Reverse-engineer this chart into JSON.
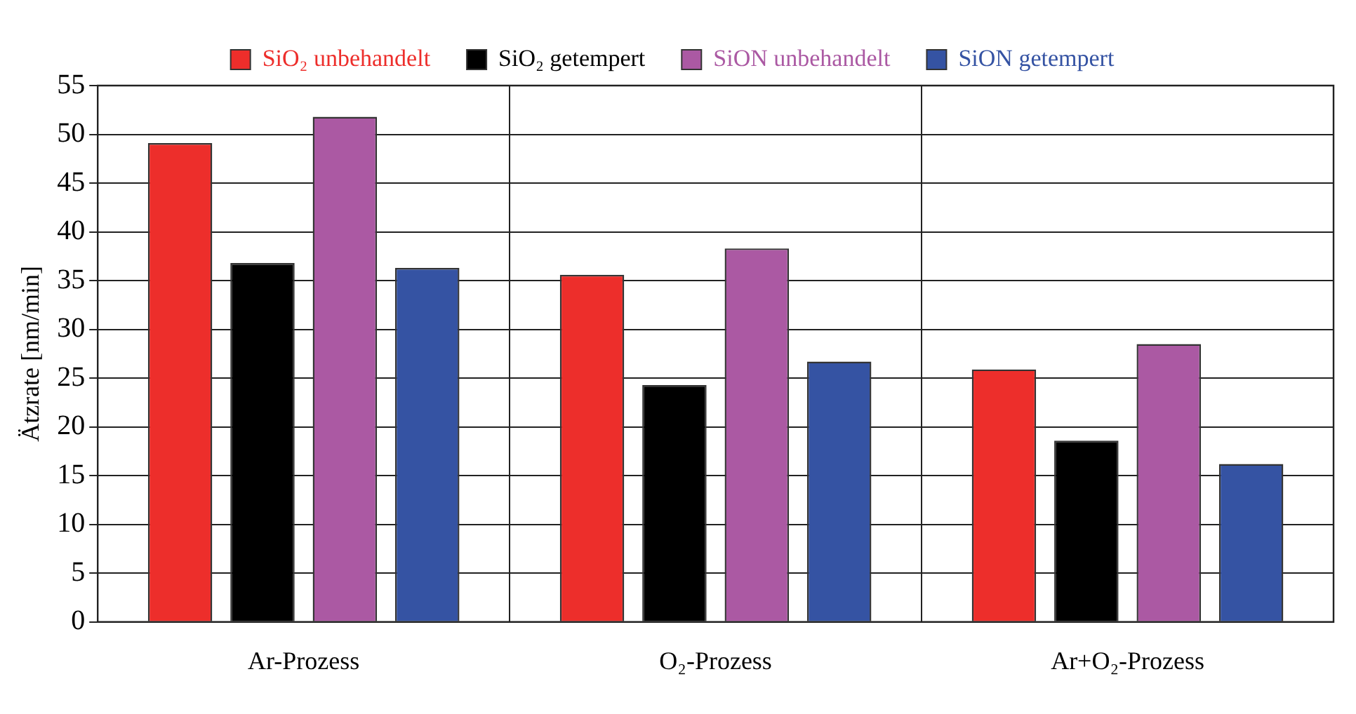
{
  "chart_data": {
    "type": "bar",
    "ylabel": "Ätzrate [nm/min]",
    "categories": [
      "Ar-Prozess",
      "O₂-Prozess",
      "Ar+O₂-Prozess"
    ],
    "series": [
      {
        "name": "SiO₂ unbehandelt",
        "color": "#ed2e2b",
        "values": [
          49.1,
          35.6,
          25.9
        ]
      },
      {
        "name": "SiO₂ getempert",
        "color": "#000000",
        "values": [
          36.8,
          24.3,
          18.6
        ]
      },
      {
        "name": "SiON unbehandelt",
        "color": "#ab59a3",
        "values": [
          51.8,
          38.3,
          28.5
        ]
      },
      {
        "name": "SiON getempert",
        "color": "#3553a3",
        "values": [
          36.3,
          26.7,
          16.2
        ]
      }
    ],
    "ylim": [
      0,
      55
    ],
    "yticks": [
      0,
      5,
      10,
      15,
      20,
      25,
      30,
      35,
      40,
      45,
      50,
      55
    ],
    "grid": true,
    "legend": "top"
  }
}
